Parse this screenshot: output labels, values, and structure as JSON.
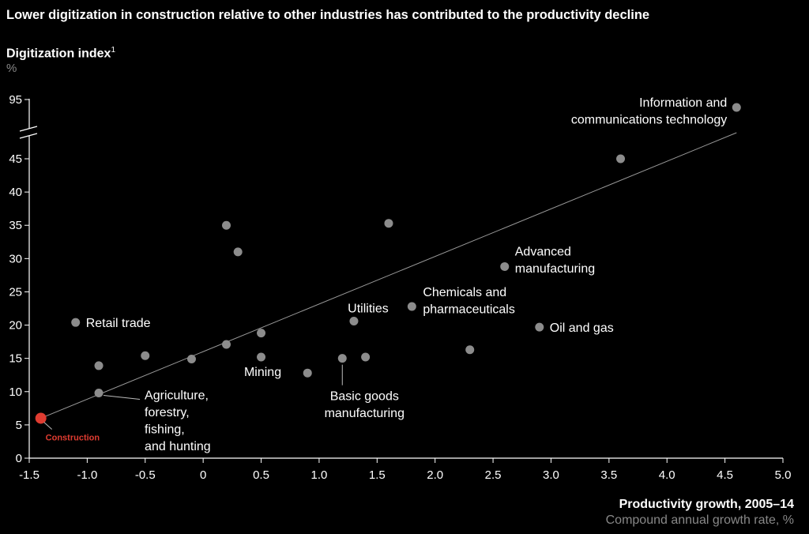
{
  "title": "Lower digitization in construction relative to other industries has contributed to the productivity decline",
  "ylabel": "Digitization index",
  "ylabel_footnote": "1",
  "yunit": "%",
  "xlabel": "Productivity growth, 2005–14",
  "xsub": "Compound annual growth rate, %",
  "colors": {
    "background": "#000000",
    "point": "#8c8c8c",
    "highlight": "#e03c31",
    "trend": "#9a9a9a",
    "axis": "#ffffff"
  },
  "chart_data": {
    "type": "scatter",
    "xlim": [
      -1.5,
      5.0
    ],
    "ylim": [
      0,
      45
    ],
    "y_axis_break": true,
    "y_break_value": 95,
    "xticks": [
      "-1.5",
      "-1.0",
      "-0.5",
      "0",
      "0.5",
      "1.0",
      "1.5",
      "2.0",
      "2.5",
      "3.0",
      "3.5",
      "4.0",
      "4.5",
      "5.0"
    ],
    "yticks": [
      "0",
      "5",
      "10",
      "15",
      "20",
      "25",
      "30",
      "35",
      "40",
      "45"
    ],
    "trendline": {
      "x": [
        -1.4,
        4.6
      ],
      "y": [
        6,
        49.5
      ]
    },
    "points": [
      {
        "x": -1.4,
        "y": 6,
        "label": "Construction",
        "highlight": true
      },
      {
        "x": -1.1,
        "y": 20.4,
        "label": "Retail trade"
      },
      {
        "x": -0.9,
        "y": 13.9,
        "label": ""
      },
      {
        "x": -0.9,
        "y": 9.8,
        "label": "Agriculture,\nforestry,\nfishing,\nand hunting"
      },
      {
        "x": -0.5,
        "y": 15.4,
        "label": ""
      },
      {
        "x": -0.1,
        "y": 14.9,
        "label": ""
      },
      {
        "x": 0.2,
        "y": 35,
        "label": ""
      },
      {
        "x": 0.3,
        "y": 31,
        "label": ""
      },
      {
        "x": 0.2,
        "y": 17.1,
        "label": ""
      },
      {
        "x": 0.5,
        "y": 18.8,
        "label": ""
      },
      {
        "x": 0.5,
        "y": 15.2,
        "label": "Mining"
      },
      {
        "x": 0.9,
        "y": 12.8,
        "label": ""
      },
      {
        "x": 1.2,
        "y": 15.0,
        "label": "Basic goods\nmanufacturing"
      },
      {
        "x": 1.4,
        "y": 15.2,
        "label": ""
      },
      {
        "x": 1.3,
        "y": 20.6,
        "label": "Utilities"
      },
      {
        "x": 1.6,
        "y": 35.3,
        "label": ""
      },
      {
        "x": 1.8,
        "y": 22.8,
        "label": "Chemicals and\npharmaceuticals"
      },
      {
        "x": 2.3,
        "y": 16.3,
        "label": ""
      },
      {
        "x": 2.6,
        "y": 28.8,
        "label": "Advanced\nmanufacturing"
      },
      {
        "x": 2.9,
        "y": 19.7,
        "label": "Oil and gas"
      },
      {
        "x": 3.6,
        "y": 45,
        "label": ""
      },
      {
        "x": 4.6,
        "y": 93,
        "label": "Information and\ncommunications technology"
      }
    ]
  }
}
